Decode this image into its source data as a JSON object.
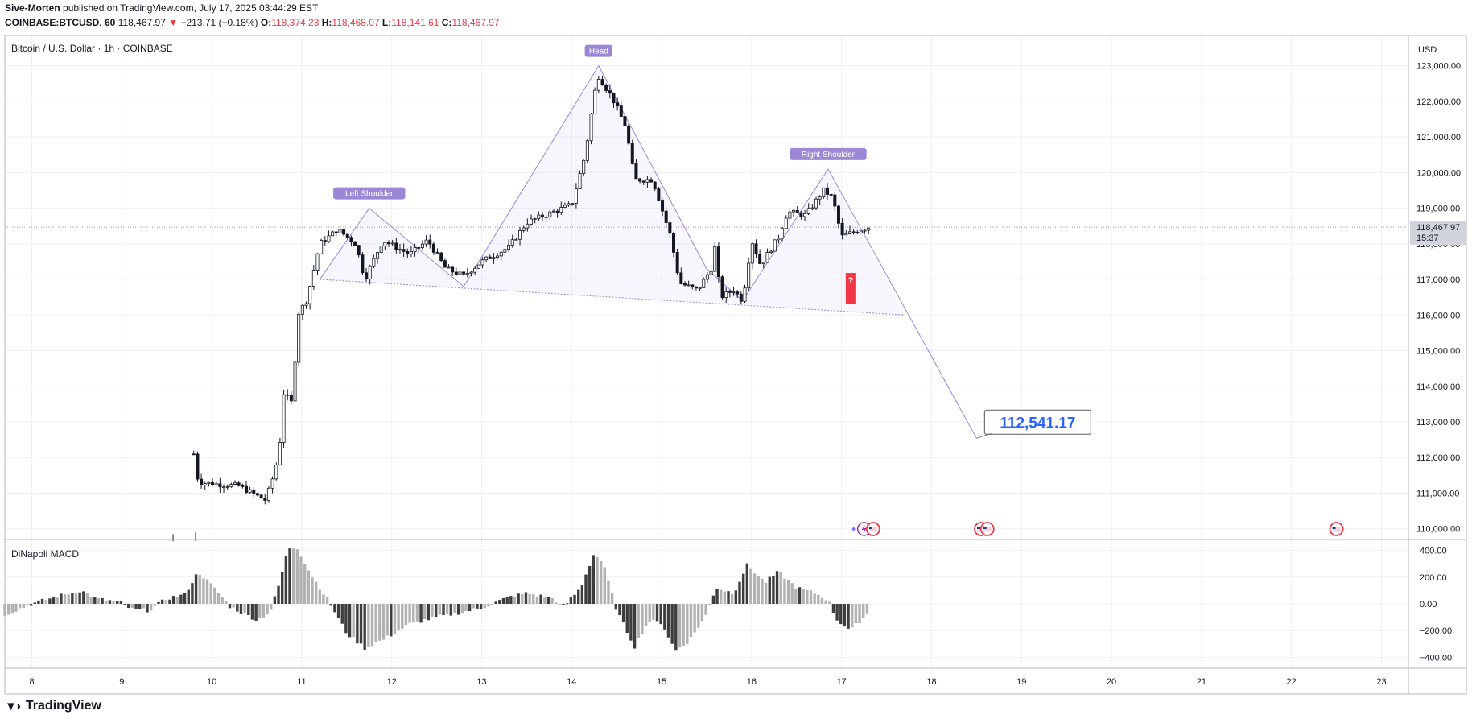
{
  "header": {
    "publisher": "Sive-Morten",
    "published_text": "published on TradingView.com, July 17, 2025 03:44:29 EST",
    "symbol": "COINBASE:BTCUSD, 60",
    "last": "118,467.97",
    "change": "−213.71 (−0.18%)",
    "o_label": "O:",
    "o": "118,374.23",
    "h_label": "H:",
    "h": "118,468.07",
    "l_label": "L:",
    "l": "118,141.61",
    "c_label": "C:",
    "c": "118,467.97"
  },
  "footer": {
    "logo_text": "TradingView",
    "logo_icon": "tradingview-logo-icon"
  },
  "colors": {
    "up": "#131722",
    "down": "#131722",
    "pattern": "#9b87d6",
    "label_bg": "#9b87d6",
    "macd_dark": "#3d3d3d",
    "macd_light": "#b2b2b2",
    "target": "#2962ff",
    "last_badge": "#d1d4dc"
  },
  "chart_data": [
    {
      "type": "candlestick",
      "title": "Bitcoin / U.S. Dollar · 1h · COINBASE",
      "currency": "USD",
      "x_ticks": [
        "8",
        "9",
        "10",
        "11",
        "12",
        "13",
        "14",
        "15",
        "16",
        "17",
        "18",
        "19",
        "20",
        "21",
        "22",
        "23"
      ],
      "x_range": [
        7.7,
        23.3
      ],
      "y_ticks": [
        "123,000.00",
        "122,000.00",
        "121,000.00",
        "120,000.00",
        "119,000.00",
        "118,000.00",
        "117,000.00",
        "116,000.00",
        "115,000.00",
        "114,000.00",
        "113,000.00",
        "112,000.00",
        "111,000.00",
        "110,000.00"
      ],
      "y_range": [
        109700,
        123850
      ],
      "last_price": "118,467.97",
      "last_time": "15:37",
      "pattern_points": [
        {
          "day": 11.2,
          "price": 117000
        },
        {
          "day": 11.75,
          "price": 119000
        },
        {
          "day": 12.8,
          "price": 116800
        },
        {
          "day": 14.3,
          "price": 123000
        },
        {
          "day": 15.5,
          "price": 117300
        },
        {
          "day": 15.9,
          "price": 116400
        },
        {
          "day": 16.85,
          "price": 120100
        },
        {
          "day": 17.7,
          "price": 116000
        }
      ],
      "neckline": [
        {
          "day": 11.2,
          "price": 117000
        },
        {
          "day": 17.7,
          "price": 116000
        }
      ],
      "projection": [
        {
          "day": 16.85,
          "price": 120100
        },
        {
          "day": 18.5,
          "price": 112541.17
        }
      ],
      "annotations": [
        {
          "text": "Left Shoulder",
          "day": 11.75,
          "price": 119000
        },
        {
          "text": "Head",
          "day": 14.3,
          "price": 123000
        },
        {
          "text": "Right Shoulder",
          "day": 16.85,
          "price": 120100
        }
      ],
      "target_label": "112,541.17",
      "question_mark": "?",
      "anchors": [
        {
          "day": 9.8,
          "price": 112100
        },
        {
          "day": 9.85,
          "price": 111300
        },
        {
          "day": 10.3,
          "price": 111200
        },
        {
          "day": 10.6,
          "price": 110800
        },
        {
          "day": 10.7,
          "price": 111600
        },
        {
          "day": 10.75,
          "price": 112200
        },
        {
          "day": 10.8,
          "price": 113800
        },
        {
          "day": 10.9,
          "price": 113500
        },
        {
          "day": 10.95,
          "price": 116000
        },
        {
          "day": 11.05,
          "price": 116400
        },
        {
          "day": 11.1,
          "price": 116900
        },
        {
          "day": 11.2,
          "price": 118000
        },
        {
          "day": 11.4,
          "price": 118400
        },
        {
          "day": 11.6,
          "price": 118000
        },
        {
          "day": 11.7,
          "price": 117000
        },
        {
          "day": 11.9,
          "price": 118100
        },
        {
          "day": 12.2,
          "price": 117700
        },
        {
          "day": 12.4,
          "price": 118100
        },
        {
          "day": 12.6,
          "price": 117300
        },
        {
          "day": 12.8,
          "price": 117100
        },
        {
          "day": 13.0,
          "price": 117500
        },
        {
          "day": 13.3,
          "price": 117900
        },
        {
          "day": 13.5,
          "price": 118600
        },
        {
          "day": 13.8,
          "price": 118900
        },
        {
          "day": 14.0,
          "price": 119100
        },
        {
          "day": 14.15,
          "price": 120500
        },
        {
          "day": 14.25,
          "price": 122200
        },
        {
          "day": 14.3,
          "price": 122700
        },
        {
          "day": 14.45,
          "price": 122100
        },
        {
          "day": 14.6,
          "price": 121300
        },
        {
          "day": 14.7,
          "price": 119800
        },
        {
          "day": 14.9,
          "price": 119800
        },
        {
          "day": 15.0,
          "price": 119000
        },
        {
          "day": 15.1,
          "price": 118200
        },
        {
          "day": 15.2,
          "price": 116900
        },
        {
          "day": 15.4,
          "price": 116700
        },
        {
          "day": 15.55,
          "price": 117300
        },
        {
          "day": 15.6,
          "price": 118000
        },
        {
          "day": 15.65,
          "price": 116500
        },
        {
          "day": 15.8,
          "price": 116700
        },
        {
          "day": 15.9,
          "price": 116400
        },
        {
          "day": 16.0,
          "price": 118100
        },
        {
          "day": 16.1,
          "price": 117400
        },
        {
          "day": 16.3,
          "price": 118200
        },
        {
          "day": 16.4,
          "price": 118900
        },
        {
          "day": 16.6,
          "price": 118800
        },
        {
          "day": 16.8,
          "price": 119500
        },
        {
          "day": 16.9,
          "price": 119300
        },
        {
          "day": 17.0,
          "price": 118200
        },
        {
          "day": 17.1,
          "price": 118300
        },
        {
          "day": 17.3,
          "price": 118467
        }
      ],
      "event_icons": [
        {
          "day": 17.35,
          "icon": "flag-us-icon"
        },
        {
          "day": 18.55,
          "icon": "flag-us-icon"
        },
        {
          "day": 18.62,
          "icon": "flag-us-icon"
        },
        {
          "day": 22.5,
          "icon": "flag-us-icon"
        }
      ],
      "event_spark_day": 17.25,
      "event_spark_icon": "lightning-icon"
    },
    {
      "type": "bar",
      "title": "DiNapoli MACD",
      "y_ticks": [
        "400.00",
        "200.00",
        "0.00",
        "−200.00",
        "−400.00"
      ],
      "y_range": [
        -470,
        470
      ],
      "anchors": [
        {
          "day": 7.7,
          "v": -80
        },
        {
          "day": 8.0,
          "v": 0
        },
        {
          "day": 8.3,
          "v": 60
        },
        {
          "day": 8.55,
          "v": 100
        },
        {
          "day": 8.7,
          "v": 40
        },
        {
          "day": 9.0,
          "v": 10
        },
        {
          "day": 9.1,
          "v": -40
        },
        {
          "day": 9.3,
          "v": -50
        },
        {
          "day": 9.5,
          "v": 40
        },
        {
          "day": 9.7,
          "v": 70
        },
        {
          "day": 9.85,
          "v": 240
        },
        {
          "day": 10.0,
          "v": 140
        },
        {
          "day": 10.2,
          "v": -20
        },
        {
          "day": 10.5,
          "v": -120
        },
        {
          "day": 10.65,
          "v": -60
        },
        {
          "day": 10.75,
          "v": 150
        },
        {
          "day": 10.85,
          "v": 420
        },
        {
          "day": 10.95,
          "v": 420
        },
        {
          "day": 11.1,
          "v": 220
        },
        {
          "day": 11.3,
          "v": 20
        },
        {
          "day": 11.5,
          "v": -220
        },
        {
          "day": 11.7,
          "v": -330
        },
        {
          "day": 11.9,
          "v": -270
        },
        {
          "day": 12.2,
          "v": -150
        },
        {
          "day": 12.5,
          "v": -100
        },
        {
          "day": 12.8,
          "v": -60
        },
        {
          "day": 13.0,
          "v": -30
        },
        {
          "day": 13.3,
          "v": 50
        },
        {
          "day": 13.5,
          "v": 80
        },
        {
          "day": 13.8,
          "v": 40
        },
        {
          "day": 13.9,
          "v": -30
        },
        {
          "day": 14.1,
          "v": 120
        },
        {
          "day": 14.25,
          "v": 380
        },
        {
          "day": 14.35,
          "v": 300
        },
        {
          "day": 14.5,
          "v": -50
        },
        {
          "day": 14.7,
          "v": -320
        },
        {
          "day": 14.85,
          "v": -130
        },
        {
          "day": 15.0,
          "v": -140
        },
        {
          "day": 15.15,
          "v": -350
        },
        {
          "day": 15.3,
          "v": -280
        },
        {
          "day": 15.5,
          "v": -80
        },
        {
          "day": 15.6,
          "v": 120
        },
        {
          "day": 15.8,
          "v": 80
        },
        {
          "day": 15.95,
          "v": 290
        },
        {
          "day": 16.15,
          "v": 160
        },
        {
          "day": 16.3,
          "v": 240
        },
        {
          "day": 16.5,
          "v": 120
        },
        {
          "day": 16.7,
          "v": 80
        },
        {
          "day": 16.85,
          "v": 30
        },
        {
          "day": 16.95,
          "v": -120
        },
        {
          "day": 17.1,
          "v": -200
        },
        {
          "day": 17.3,
          "v": -60
        }
      ]
    }
  ]
}
